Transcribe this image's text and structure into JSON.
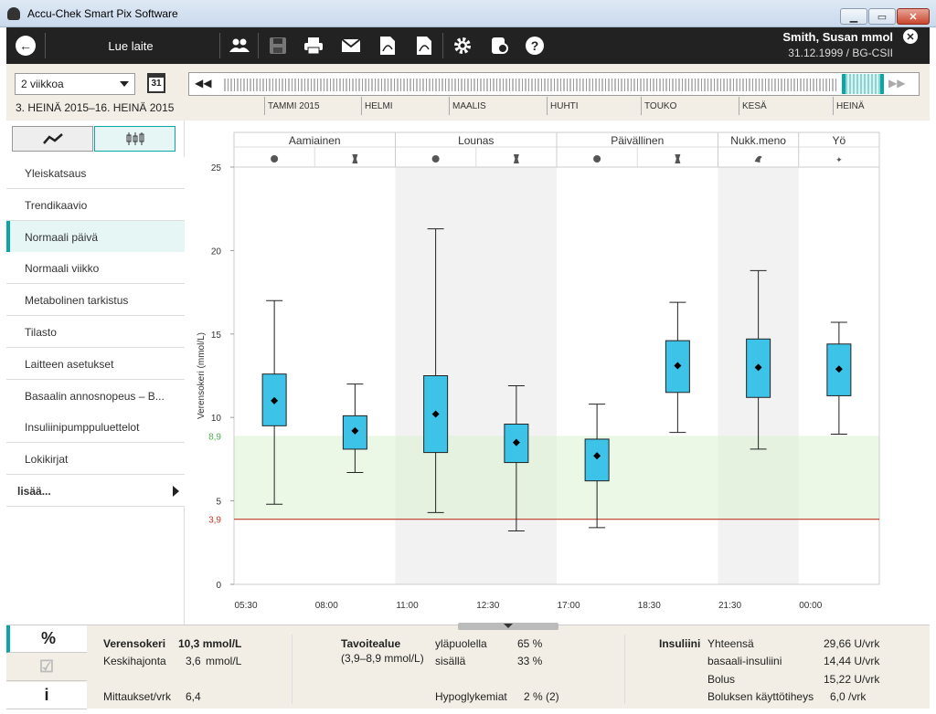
{
  "window": {
    "title": "Accu-Chek Smart Pix Software",
    "min": "▁",
    "max": "▭",
    "close": "✕"
  },
  "toolbar": {
    "back": "←",
    "read_device": "Lue laite",
    "patient_name": "Smith, Susan mmol",
    "patient_info": "31.12.1999 / BG-CSII",
    "patient_close": "✕"
  },
  "period": {
    "selected": "2 viikkoa",
    "calendar_day": "31",
    "range": "3. HEINÄ 2015–16. HEINÄ 2015",
    "prev": "◀◀",
    "next": "▶▶",
    "months": [
      "TAMMI 2015",
      "HELMI",
      "MAALIS",
      "HUHTI",
      "TOUKO",
      "KESÄ",
      "HEINÄ"
    ]
  },
  "sidebar": {
    "items": [
      {
        "label": "Yleiskatsaus",
        "active": false
      },
      {
        "label": "Trendikaavio",
        "active": false
      },
      {
        "label": "Normaali päivä",
        "active": true
      },
      {
        "label": "Normaali viikko",
        "active": false
      },
      {
        "label": "Metabolinen tarkistus",
        "active": false
      },
      {
        "label": "Tilasto",
        "active": false
      },
      {
        "label": "Laitteen asetukset",
        "active": false
      },
      {
        "label": "Basaalin annosnopeus – B...",
        "active": false
      },
      {
        "label": "Insuliinipumppuluettelot",
        "active": false
      },
      {
        "label": "Lokikirjat",
        "active": false
      }
    ],
    "more": "lisää..."
  },
  "chart_data": {
    "type": "boxplot",
    "ylabel": "Verensokeri (mmol/L)",
    "ylim": [
      0,
      25
    ],
    "yticks": [
      0,
      5,
      10,
      15,
      20,
      25
    ],
    "target_low": 3.9,
    "target_high": 8.9,
    "target_low_label": "3,9",
    "target_high_label": "8,9",
    "periods": [
      "Aamiainen",
      "Lounas",
      "Päivällinen",
      "Nukk.meno",
      "Yö"
    ],
    "xtick_labels": [
      "05:30",
      "08:00",
      "11:00",
      "12:30",
      "17:00",
      "18:30",
      "21:30",
      "00:00"
    ],
    "boxes": [
      {
        "slot": "Aamiainen ennen",
        "min": 4.8,
        "q1": 9.5,
        "median": 11.0,
        "q3": 12.6,
        "max": 17.0
      },
      {
        "slot": "Aamiainen jälkeen",
        "min": 6.7,
        "q1": 8.1,
        "median": 9.2,
        "q3": 10.1,
        "max": 12.0
      },
      {
        "slot": "Lounas ennen",
        "min": 4.3,
        "q1": 7.9,
        "median": 10.2,
        "q3": 12.5,
        "max": 21.3
      },
      {
        "slot": "Lounas jälkeen",
        "min": 3.2,
        "q1": 7.3,
        "median": 8.5,
        "q3": 9.6,
        "max": 11.9
      },
      {
        "slot": "Päivällinen ennen",
        "min": 3.4,
        "q1": 6.2,
        "median": 7.7,
        "q3": 8.7,
        "max": 10.8
      },
      {
        "slot": "Päivällinen jälkeen",
        "min": 9.1,
        "q1": 11.5,
        "median": 13.1,
        "q3": 14.6,
        "max": 16.9
      },
      {
        "slot": "Nukk.meno",
        "min": 8.1,
        "q1": 11.2,
        "median": 13.0,
        "q3": 14.7,
        "max": 18.8
      },
      {
        "slot": "Yö",
        "min": 9.0,
        "q1": 11.3,
        "median": 12.9,
        "q3": 14.4,
        "max": 15.7
      }
    ]
  },
  "stats": {
    "glucose_label": "Verensokeri",
    "glucose_value": "10,3 mmol/L",
    "sd_label": "Keskihajonta",
    "sd_value": "3,6",
    "sd_unit": "mmol/L",
    "meas_label": "Mittaukset/vrk",
    "meas_value": "6,4",
    "target_label": "Tavoitealue",
    "target_range": "(3,9–8,9 mmol/L)",
    "above_label": "yläpuolella",
    "above_value": "65 %",
    "within_label": "sisällä",
    "within_value": "33 %",
    "hypo_label": "Hypoglykemiat",
    "hypo_value": "2 % (2)",
    "insulin_label": "Insuliini",
    "total_label": "Yhteensä",
    "total_value": "29,66 U/vrk",
    "basal_label": "basaali-insuliini",
    "basal_value": "14,44 U/vrk",
    "bolus_label": "Bolus",
    "bolus_value": "15,22 U/vrk",
    "bolus_use_label": "Boluksen käyttötiheys",
    "bolus_use_value": "6,0 /vrk"
  },
  "bottom_tabs": {
    "pct": "%",
    "check": "☑",
    "info": "i"
  }
}
